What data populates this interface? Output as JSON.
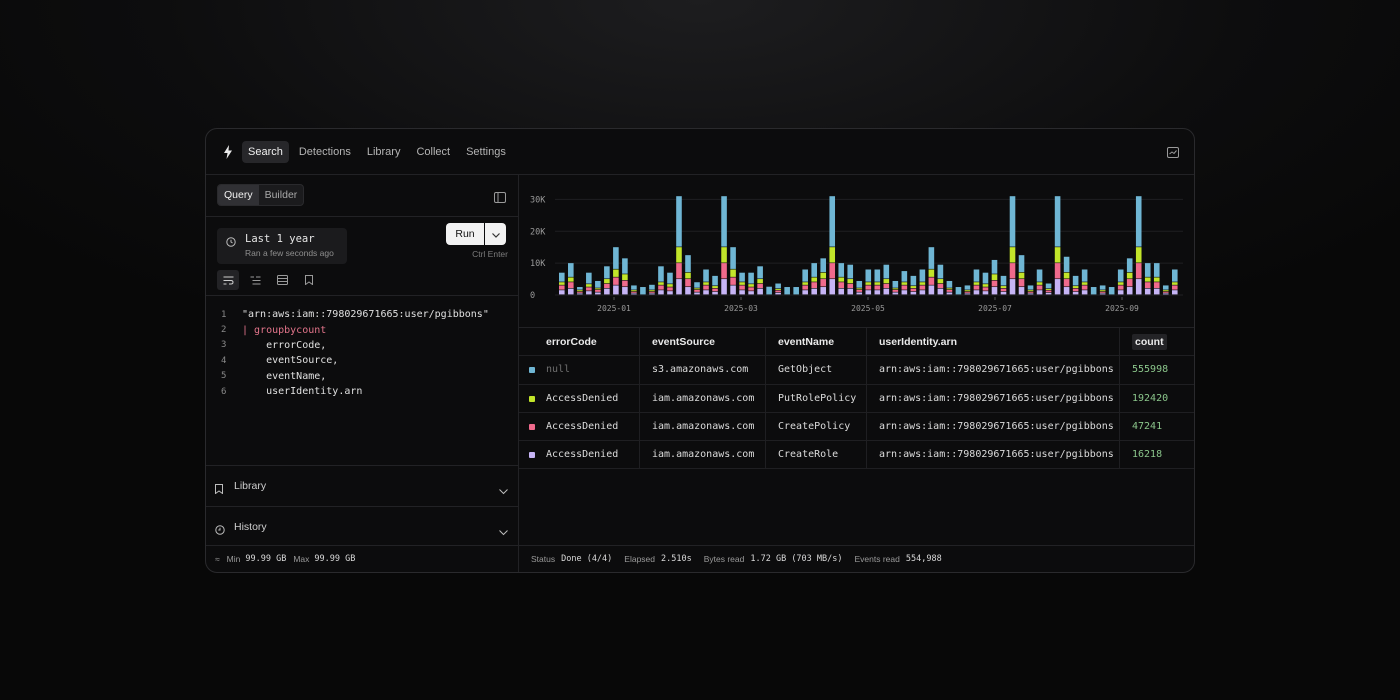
{
  "nav": {
    "items": [
      {
        "label": "Search",
        "active": true
      },
      {
        "label": "Detections",
        "active": false
      },
      {
        "label": "Library",
        "active": false
      },
      {
        "label": "Collect",
        "active": false
      },
      {
        "label": "Settings",
        "active": false
      }
    ]
  },
  "query": {
    "modes": [
      {
        "label": "Query",
        "active": true
      },
      {
        "label": "Builder",
        "active": false
      }
    ],
    "time_range": "Last 1 year",
    "time_status": "Ran a few seconds ago",
    "run_label": "Run",
    "run_hint": "Ctrl Enter",
    "code_lines": [
      {
        "n": "1",
        "text": "\"arn:aws:iam::798029671665:user/pgibbons\"",
        "style": "normal"
      },
      {
        "n": "2",
        "text": "| groupbycount",
        "style": "keyword"
      },
      {
        "n": "3",
        "text": "    errorCode,",
        "style": "normal"
      },
      {
        "n": "4",
        "text": "    eventSource,",
        "style": "normal"
      },
      {
        "n": "5",
        "text": "    eventName,",
        "style": "normal"
      },
      {
        "n": "6",
        "text": "    userIdentity.arn",
        "style": "normal"
      }
    ],
    "library_label": "Library",
    "history_label": "History",
    "footer": {
      "min_label": "Min",
      "min_value": "99.99 GB",
      "max_label": "Max",
      "max_value": "99.99 GB"
    }
  },
  "colors": {
    "null": "#6fb6d4",
    "accessdenied_putrole": "#c2e52a",
    "accessdenied_createpolicy": "#f06a8c",
    "accessdenied_createrole": "#c6b4f5"
  },
  "chart_data": {
    "type": "bar",
    "stacked": true,
    "y_ticks": [
      "30K",
      "20K",
      "10K",
      "0"
    ],
    "ylim": [
      0,
      32000
    ],
    "x_tick_labels": [
      "2025-01",
      "2025-03",
      "2025-05",
      "2025-07",
      "2025-09"
    ],
    "grid": true,
    "series": [
      {
        "color": "#c6b4f5",
        "values": [
          1500,
          2000,
          500,
          1200,
          800,
          2000,
          3000,
          2500,
          500,
          0,
          500,
          1500,
          1200,
          5000,
          2500,
          800,
          1500,
          1000,
          5000,
          3000,
          1500,
          1200,
          2000,
          0,
          700,
          0,
          0,
          1500,
          2000,
          2500,
          5000,
          2000,
          2000,
          800,
          1500,
          1500,
          2000,
          800,
          1500,
          1000,
          1500,
          3000,
          2000,
          800,
          0,
          500,
          1500,
          1200,
          2500,
          1000,
          5000,
          2500,
          500,
          1500,
          700,
          5000,
          2500,
          1000,
          1500,
          0,
          500,
          0,
          1500,
          2500,
          5000,
          2000,
          2000,
          500,
          1500
        ]
      },
      {
        "color": "#f06a8c",
        "values": [
          1500,
          2000,
          500,
          1200,
          800,
          1500,
          2500,
          2000,
          500,
          0,
          500,
          1500,
          1200,
          5000,
          2500,
          800,
          1500,
          1000,
          5000,
          2500,
          1500,
          1200,
          1500,
          0,
          700,
          0,
          0,
          1500,
          2000,
          2500,
          5000,
          2000,
          1500,
          800,
          1500,
          1500,
          1500,
          800,
          1500,
          1000,
          1500,
          2500,
          1500,
          800,
          0,
          500,
          1500,
          1200,
          2000,
          1000,
          5000,
          2500,
          500,
          1500,
          700,
          5000,
          2500,
          1000,
          1500,
          0,
          500,
          0,
          1500,
          2500,
          5000,
          2000,
          2000,
          500,
          1500
        ]
      },
      {
        "color": "#c2e52a",
        "values": [
          1000,
          1500,
          500,
          1000,
          500,
          1500,
          2500,
          2000,
          500,
          0,
          500,
          1000,
          1000,
          5000,
          2000,
          500,
          1000,
          800,
          5000,
          2500,
          1000,
          1000,
          1500,
          0,
          500,
          0,
          0,
          1000,
          1500,
          2000,
          5000,
          1500,
          1500,
          500,
          1000,
          1000,
          1500,
          500,
          1000,
          800,
          1000,
          2500,
          1500,
          500,
          0,
          500,
          1000,
          1000,
          2000,
          800,
          5000,
          2000,
          500,
          1000,
          500,
          5000,
          2000,
          800,
          1000,
          0,
          500,
          0,
          1000,
          2000,
          5000,
          1500,
          1500,
          500,
          1000
        ]
      },
      {
        "color": "#6fb6d4",
        "values": [
          3000,
          4500,
          1000,
          3600,
          2300,
          4000,
          7000,
          5000,
          1500,
          2500,
          1700,
          5000,
          3600,
          16000,
          5500,
          1900,
          4000,
          3200,
          16000,
          7000,
          3000,
          3600,
          4000,
          2600,
          1700,
          2500,
          2500,
          4000,
          4500,
          4500,
          16000,
          4500,
          4500,
          2300,
          4000,
          4000,
          4500,
          2300,
          3500,
          3200,
          4000,
          7000,
          4500,
          2300,
          2500,
          1500,
          4000,
          3600,
          4500,
          3200,
          16000,
          5500,
          1500,
          4000,
          1700,
          16000,
          5000,
          3200,
          4000,
          2500,
          1500,
          2500,
          4000,
          4500,
          16000,
          4500,
          4500,
          1500,
          4000
        ]
      }
    ],
    "gaps_after": []
  },
  "table": {
    "columns": [
      "errorCode",
      "eventSource",
      "eventName",
      "userIdentity.arn",
      "count"
    ],
    "rows": [
      {
        "color": "#6fb6d4",
        "errorCode": "null",
        "eventSource": "s3.amazonaws.com",
        "eventName": "GetObject",
        "arn": "arn:aws:iam::798029671665:user/pgibbons",
        "count": "555998"
      },
      {
        "color": "#c2e52a",
        "errorCode": "AccessDenied",
        "eventSource": "iam.amazonaws.com",
        "eventName": "PutRolePolicy",
        "arn": "arn:aws:iam::798029671665:user/pgibbons",
        "count": "192420"
      },
      {
        "color": "#f06a8c",
        "errorCode": "AccessDenied",
        "eventSource": "iam.amazonaws.com",
        "eventName": "CreatePolicy",
        "arn": "arn:aws:iam::798029671665:user/pgibbons",
        "count": "47241"
      },
      {
        "color": "#c6b4f5",
        "errorCode": "AccessDenied",
        "eventSource": "iam.amazonaws.com",
        "eventName": "CreateRole",
        "arn": "arn:aws:iam::798029671665:user/pgibbons",
        "count": "16218"
      }
    ]
  },
  "status": {
    "status_label": "Status",
    "status_value": "Done (4/4)",
    "elapsed_label": "Elapsed",
    "elapsed_value": "2.510s",
    "bytes_label": "Bytes read",
    "bytes_value": "1.72 GB (703 MB/s)",
    "events_label": "Events read",
    "events_value": "554,988"
  }
}
